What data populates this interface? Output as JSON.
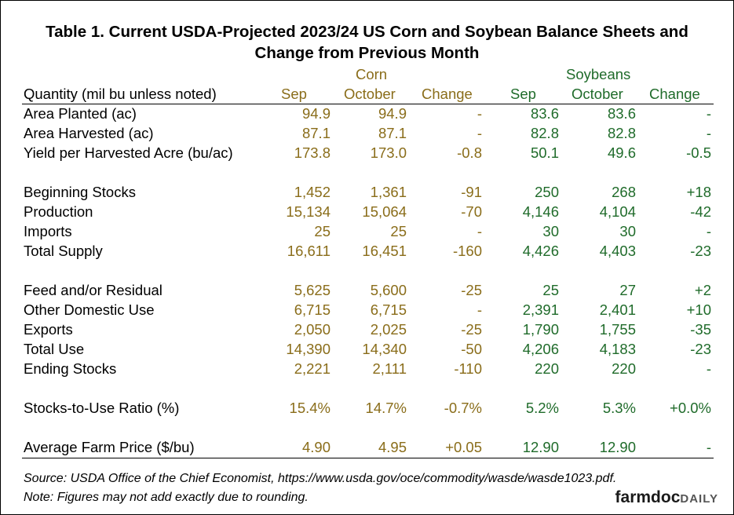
{
  "chart_data": {
    "type": "table",
    "title_line1": "Table 1. Current USDA-Projected 2023/24 US Corn and Soybean Balance Sheets and",
    "title_line2": "Change from Previous Month",
    "quantity_header": "Quantity (mil bu unless noted)",
    "groups": [
      {
        "name": "Corn",
        "columns": [
          "Sep",
          "October",
          "Change"
        ]
      },
      {
        "name": "Soybeans",
        "columns": [
          "Sep",
          "October",
          "Change"
        ]
      }
    ],
    "rows": [
      {
        "label": "Area Planted (ac)",
        "values": [
          "94.9",
          "94.9",
          "-",
          "83.6",
          "83.6",
          "-"
        ]
      },
      {
        "label": "Area Harvested (ac)",
        "values": [
          "87.1",
          "87.1",
          "-",
          "82.8",
          "82.8",
          "-"
        ]
      },
      {
        "label": "Yield per Harvested Acre (bu/ac)",
        "values": [
          "173.8",
          "173.0",
          "-0.8",
          "50.1",
          "49.6",
          "-0.5"
        ]
      },
      {
        "label": "Beginning Stocks",
        "values": [
          "1,452",
          "1,361",
          "-91",
          "250",
          "268",
          "+18"
        ]
      },
      {
        "label": "Production",
        "values": [
          "15,134",
          "15,064",
          "-70",
          "4,146",
          "4,104",
          "-42"
        ]
      },
      {
        "label": "Imports",
        "values": [
          "25",
          "25",
          "-",
          "30",
          "30",
          "-"
        ]
      },
      {
        "label": "Total Supply",
        "values": [
          "16,611",
          "16,451",
          "-160",
          "4,426",
          "4,403",
          "-23"
        ]
      },
      {
        "label": "Feed and/or Residual",
        "values": [
          "5,625",
          "5,600",
          "-25",
          "25",
          "27",
          "+2"
        ]
      },
      {
        "label": "Other Domestic Use",
        "values": [
          "6,715",
          "6,715",
          "-",
          "2,391",
          "2,401",
          "+10"
        ]
      },
      {
        "label": "Exports",
        "values": [
          "2,050",
          "2,025",
          "-25",
          "1,790",
          "1,755",
          "-35"
        ]
      },
      {
        "label": "Total Use",
        "values": [
          "14,390",
          "14,340",
          "-50",
          "4,206",
          "4,183",
          "-23"
        ]
      },
      {
        "label": "Ending Stocks",
        "values": [
          "2,221",
          "2,111",
          "-110",
          "220",
          "220",
          "-"
        ]
      },
      {
        "label": "Stocks-to-Use Ratio (%)",
        "values": [
          "15.4%",
          "14.7%",
          "-0.7%",
          "5.2%",
          "5.3%",
          "+0.0%"
        ]
      },
      {
        "label": "Average Farm Price ($/bu)",
        "values": [
          "4.90",
          "4.95",
          "+0.05",
          "12.90",
          "12.90",
          "-"
        ]
      }
    ],
    "source": "Source: USDA Office of the Chief Economist, https://www.usda.gov/oce/commodity/wasde/wasde1023.pdf.",
    "note": "Note: Figures may not add exactly due to rounding.",
    "colors": {
      "corn": "#8a6d1a",
      "soybeans": "#1f6b2a"
    }
  },
  "logo": {
    "main": "farmdoc",
    "sub": "DAILY"
  }
}
